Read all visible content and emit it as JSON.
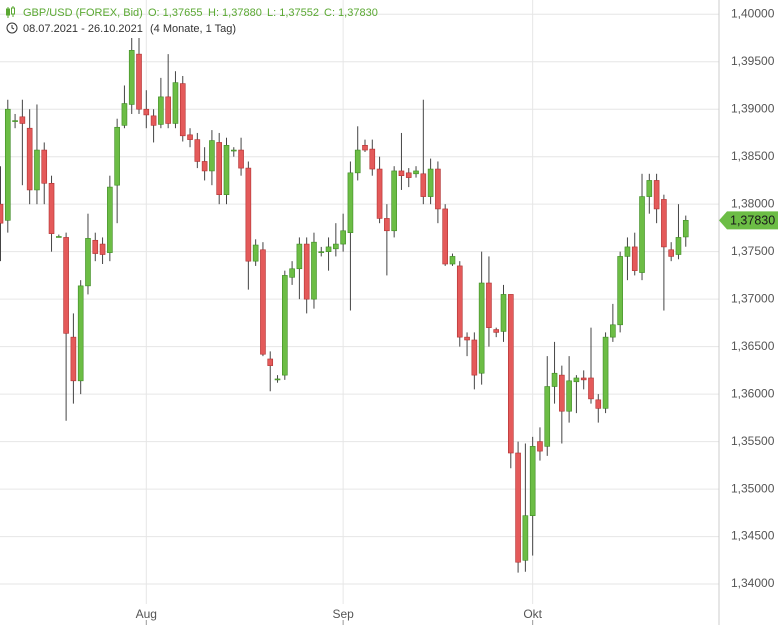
{
  "header": {
    "instrument": "GBP/USD (FOREX, Bid)",
    "open": "O: 1,37655",
    "high": "H: 1,37880",
    "low": "L: 1,37552",
    "close": "C: 1,37830",
    "range": "08.07.2021 - 26.10.2021",
    "duration": "(4 Monate, 1 Tag)"
  },
  "chart_data": {
    "type": "candlestick",
    "categories": [
      null,
      null,
      null,
      null,
      null,
      null,
      null,
      null,
      null,
      null,
      null,
      null,
      null,
      null,
      null,
      null,
      null,
      null,
      null,
      null,
      "Aug",
      null,
      null,
      null,
      null,
      null,
      null,
      null,
      null,
      null,
      null,
      null,
      null,
      null,
      null,
      null,
      null,
      null,
      null,
      null,
      null,
      null,
      null,
      null,
      null,
      null,
      null,
      "Sep",
      null,
      null,
      null,
      null,
      null,
      null,
      null,
      null,
      null,
      null,
      null,
      null,
      null,
      null,
      null,
      null,
      null,
      null,
      null,
      null,
      null,
      null,
      null,
      null,
      null,
      "Okt",
      null,
      null,
      null,
      null,
      null,
      null,
      null,
      null,
      null,
      null,
      null,
      null,
      null,
      null,
      null,
      null,
      null,
      null,
      null,
      null,
      null
    ],
    "open": [
      1.38,
      1.3783,
      1.3888,
      1.3892,
      1.388,
      1.3815,
      1.3857,
      1.3822,
      1.3766,
      1.3765,
      1.366,
      1.3614,
      1.3714,
      1.3762,
      1.3758,
      1.3749,
      1.382,
      1.3883,
      1.3905,
      1.3958,
      1.39,
      1.3893,
      1.3884,
      1.3913,
      1.3885,
      1.3927,
      1.3873,
      1.3868,
      1.3845,
      1.3835,
      1.3865,
      1.381,
      1.3857,
      1.3857,
      1.3838,
      1.374,
      1.3752,
      1.3637,
      1.3616,
      1.362,
      1.3723,
      1.3732,
      1.3758,
      1.37,
      1.375,
      1.375,
      1.3753,
      1.3758,
      1.377,
      1.3833,
      1.3862,
      1.3858,
      1.3837,
      1.3785,
      1.3772,
      1.3835,
      1.3833,
      1.3832,
      1.3832,
      1.3808,
      1.3837,
      1.3795,
      1.3737,
      1.3735,
      1.366,
      1.3657,
      1.3622,
      1.3717,
      1.3668,
      1.3666,
      1.3705,
      1.3538,
      1.3425,
      1.3472,
      1.355,
      1.3545,
      1.3608,
      1.362,
      1.3582,
      1.3613,
      1.3617,
      1.3617,
      1.3594,
      1.3585,
      1.366,
      1.3673,
      1.3745,
      1.3755,
      1.3728,
      1.3808,
      1.3825,
      1.3805,
      1.3752,
      1.3747,
      1.37655
    ],
    "high": [
      1.384,
      1.391,
      1.3895,
      1.391,
      1.39,
      1.3905,
      1.3865,
      1.383,
      1.3768,
      1.377,
      1.3685,
      1.372,
      1.379,
      1.377,
      1.3765,
      1.383,
      1.389,
      1.3925,
      1.3975,
      1.3975,
      1.392,
      1.39,
      1.3933,
      1.3958,
      1.394,
      1.3935,
      1.388,
      1.3875,
      1.386,
      1.3878,
      1.3875,
      1.387,
      1.386,
      1.387,
      1.3845,
      1.3763,
      1.376,
      1.3645,
      1.362,
      1.373,
      1.374,
      1.3765,
      1.3765,
      1.377,
      1.3755,
      1.3765,
      1.378,
      1.379,
      1.3845,
      1.3882,
      1.3868,
      1.3868,
      1.385,
      1.38,
      1.384,
      1.3875,
      1.3838,
      1.384,
      1.391,
      1.3848,
      1.3845,
      1.38,
      1.3748,
      1.374,
      1.3665,
      1.3665,
      1.375,
      1.3745,
      1.367,
      1.3715,
      1.3705,
      1.355,
      1.3548,
      1.3555,
      1.3565,
      1.364,
      1.3655,
      1.363,
      1.364,
      1.362,
      1.3625,
      1.367,
      1.36,
      1.3665,
      1.3695,
      1.375,
      1.3765,
      1.377,
      1.3832,
      1.3832,
      1.3832,
      1.381,
      1.376,
      1.38,
      1.3788
    ],
    "low": [
      1.374,
      1.377,
      1.388,
      1.382,
      1.38,
      1.38,
      1.38,
      1.375,
      1.3765,
      1.3572,
      1.359,
      1.36,
      1.3705,
      1.374,
      1.3737,
      1.374,
      1.378,
      1.388,
      1.3895,
      1.3895,
      1.388,
      1.3865,
      1.388,
      1.388,
      1.388,
      1.3866,
      1.386,
      1.3838,
      1.3825,
      1.382,
      1.38,
      1.38,
      1.385,
      1.383,
      1.371,
      1.3735,
      1.364,
      1.3603,
      1.3612,
      1.3615,
      1.3715,
      1.37,
      1.3685,
      1.369,
      1.3745,
      1.373,
      1.3745,
      1.375,
      1.3688,
      1.3825,
      1.3855,
      1.383,
      1.378,
      1.3725,
      1.3765,
      1.3815,
      1.3818,
      1.3828,
      1.38,
      1.38,
      1.378,
      1.3735,
      1.3735,
      1.365,
      1.364,
      1.3605,
      1.361,
      1.365,
      1.366,
      1.3655,
      1.3522,
      1.3412,
      1.3413,
      1.343,
      1.353,
      1.3535,
      1.359,
      1.3548,
      1.357,
      1.358,
      1.3605,
      1.359,
      1.357,
      1.358,
      1.3655,
      1.3665,
      1.372,
      1.3725,
      1.372,
      1.379,
      1.378,
      1.3688,
      1.374,
      1.3742,
      1.37552
    ],
    "close": [
      1.378,
      1.39,
      1.3888,
      1.3885,
      1.3815,
      1.3857,
      1.3822,
      1.3769,
      1.3766,
      1.3664,
      1.3614,
      1.3714,
      1.3764,
      1.3748,
      1.3747,
      1.3818,
      1.3881,
      1.3906,
      1.3962,
      1.39,
      1.3894,
      1.3883,
      1.3913,
      1.3885,
      1.3928,
      1.3872,
      1.3868,
      1.3845,
      1.3835,
      1.3867,
      1.381,
      1.3862,
      1.3857,
      1.3838,
      1.374,
      1.3757,
      1.3642,
      1.363,
      1.3616,
      1.3725,
      1.3732,
      1.3758,
      1.37,
      1.376,
      1.375,
      1.3755,
      1.3758,
      1.3772,
      1.3833,
      1.3857,
      1.3857,
      1.3837,
      1.3785,
      1.3772,
      1.3835,
      1.383,
      1.3828,
      1.3835,
      1.3808,
      1.3837,
      1.3795,
      1.3737,
      1.3745,
      1.366,
      1.3657,
      1.362,
      1.3717,
      1.367,
      1.3665,
      1.3705,
      1.3538,
      1.3423,
      1.3472,
      1.3545,
      1.354,
      1.3608,
      1.3622,
      1.3582,
      1.3614,
      1.3617,
      1.3615,
      1.3595,
      1.3585,
      1.366,
      1.3673,
      1.3745,
      1.3755,
      1.373,
      1.3808,
      1.3825,
      1.3795,
      1.3755,
      1.3745,
      1.3765,
      1.3783
    ],
    "up_color": "#6cbd45",
    "down_color": "#e45a5a",
    "ylim": [
      1.3379,
      1.4015
    ],
    "yticks": [
      {
        "value": 1.34,
        "label": "1,34000"
      },
      {
        "value": 1.345,
        "label": "1,34500"
      },
      {
        "value": 1.35,
        "label": "1,35000"
      },
      {
        "value": 1.355,
        "label": "1,35500"
      },
      {
        "value": 1.36,
        "label": "1,36000"
      },
      {
        "value": 1.365,
        "label": "1,36500"
      },
      {
        "value": 1.37,
        "label": "1,37000"
      },
      {
        "value": 1.375,
        "label": "1,37500"
      },
      {
        "value": 1.38,
        "label": "1,38000"
      },
      {
        "value": 1.385,
        "label": "1,38500"
      },
      {
        "value": 1.39,
        "label": "1,39000"
      },
      {
        "value": 1.395,
        "label": "1,39500"
      },
      {
        "value": 1.4,
        "label": "1,40000"
      }
    ],
    "last_price": {
      "value": 1.3783,
      "label": "1,37830"
    },
    "grid": true
  }
}
